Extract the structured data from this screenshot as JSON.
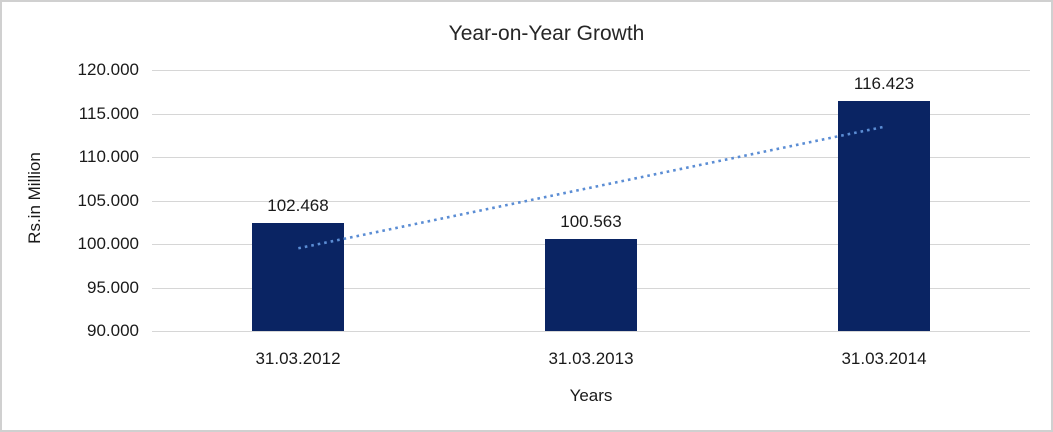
{
  "chart_data": {
    "type": "bar",
    "title": "Year-on-Year Growth",
    "categories": [
      "31.03.2012",
      "31.03.2013",
      "31.03.2014"
    ],
    "values": [
      102.468,
      100.563,
      116.423
    ],
    "value_labels": [
      "102.468",
      "100.563",
      "116.423"
    ],
    "xlabel": "Years",
    "ylabel": "Rs.in Million",
    "ylim": [
      90,
      120
    ],
    "ytick_step": 5,
    "ytick_labels": [
      "120.000",
      "115.000",
      "110.000",
      "105.000",
      "100.000",
      "95.000",
      "90.000"
    ],
    "grid": true,
    "legend": "none",
    "trendline": {
      "type": "linear",
      "style": "dotted",
      "start_value": 99.508,
      "end_value": 113.462
    },
    "colors": {
      "bar": "#0a2463",
      "trendline": "#5b8dd4",
      "gridline": "#d6d6d6",
      "chart_border": "#d0d0d0",
      "title": "#262626",
      "text": "#1a1a1a",
      "background": "#ffffff"
    }
  }
}
